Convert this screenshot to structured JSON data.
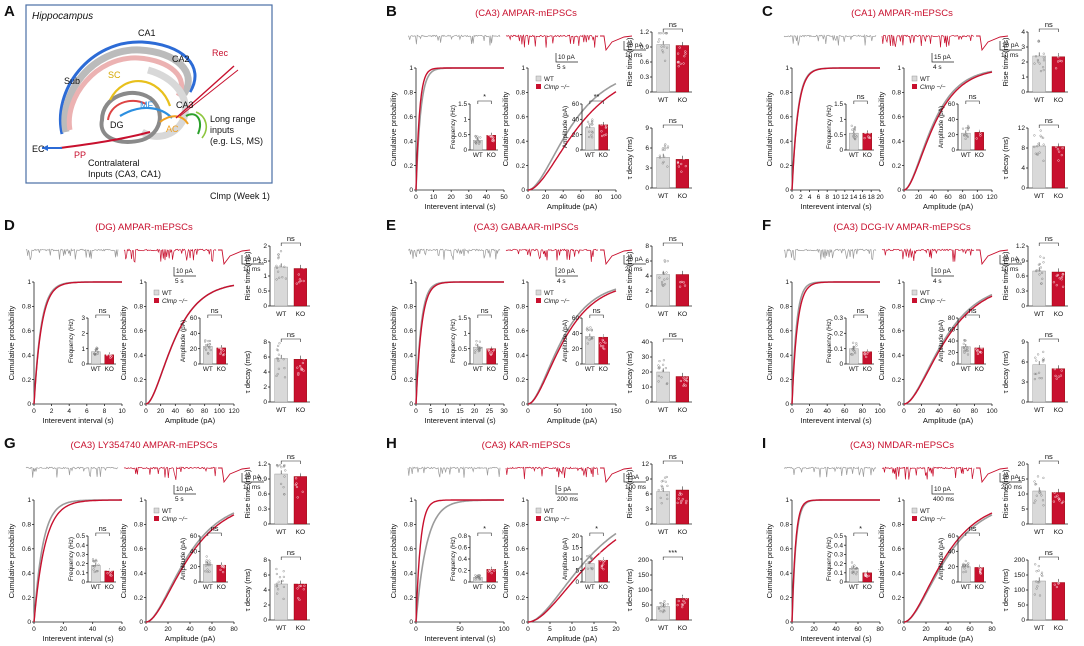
{
  "panelA": {
    "label": "A",
    "title": "Hippocampus",
    "note": "Clmp (Week 1)",
    "labels": {
      "ca1": "CA1",
      "ca2": "CA2",
      "ca3": "CA3",
      "sub": "Sub",
      "sc": "SC",
      "mf": "MF",
      "ac": "AC",
      "dg": "DG",
      "ec": "EC",
      "pp": "PP",
      "rec": "Rec",
      "longRange1": "Long range",
      "longRange2": "inputs",
      "longRange3": "(e.g. LS, MS)",
      "contra1": "Contralateral",
      "contra2": "Inputs (CA3, CA1)"
    }
  },
  "legend": {
    "wt": "WT",
    "ko": "Clmp −/−"
  },
  "groups": [
    "WT",
    "KO"
  ],
  "labels": {
    "cum": "Cumulative probability",
    "iei": "Interevent interval (s)",
    "amp": "Amplitude (pA)",
    "freqInset": "Frequency (Hz)",
    "ampInset": "Amplitude (pA)",
    "rise": "Rise time (ms)",
    "decay": "τ decay (ms)"
  },
  "colors": {
    "wt": "#9b9b9b",
    "ko": "#c8102e",
    "wtBar": "#d9d9d9",
    "koBar": "#c8102e"
  },
  "chart_data": [
    {
      "panel": "B",
      "title": "(CA3) AMPAR-mEPSCs",
      "type": "line",
      "scalebars": [
        "10 pA",
        "5 s",
        "10 pA",
        "10 ms"
      ],
      "cum_iei": {
        "xticks": [
          0,
          10,
          20,
          30,
          40,
          50
        ],
        "yticks": [
          0,
          0.2,
          0.4,
          0.6,
          0.8,
          1.0
        ],
        "wt_scale": 2.6,
        "ko_scale": 2.0,
        "shape": "exp"
      },
      "cum_amp": {
        "xticks": [
          0,
          20,
          40,
          60,
          80,
          100
        ],
        "yticks": [
          0,
          0.2,
          0.4,
          0.6,
          0.8,
          1.0
        ],
        "wt_scale": 28,
        "ko_scale": 33,
        "shape": "gamma"
      },
      "freq": {
        "WT": 0.32,
        "KO": 0.48,
        "yticks": [
          0,
          0.5,
          1.0,
          1.5
        ],
        "sig": "*"
      },
      "ampBar": {
        "WT": 29,
        "KO": 33,
        "yticks": [
          0,
          20,
          40,
          60
        ],
        "sig": "**"
      },
      "rise": {
        "WT": 0.95,
        "KO": 0.93,
        "yticks": [
          0,
          0.3,
          0.6,
          0.9,
          1.2
        ],
        "sig": "ns"
      },
      "decay": {
        "WT": 4.6,
        "KO": 4.3,
        "yticks": [
          0,
          3,
          6,
          9
        ],
        "sig": "ns"
      }
    },
    {
      "panel": "C",
      "title": "(CA1) AMPAR-mEPSCs",
      "type": "line",
      "scalebars": [
        "15 pA",
        "4 s",
        "10 pA",
        "10 ms"
      ],
      "cum_iei": {
        "xticks": [
          0,
          2,
          4,
          6,
          8,
          10,
          12,
          14,
          16,
          18,
          20
        ],
        "yticks": [
          0,
          0.2,
          0.4,
          0.6,
          0.8,
          1.0
        ],
        "wt_scale": 1.3,
        "ko_scale": 1.35,
        "shape": "exp"
      },
      "cum_amp": {
        "xticks": [
          0,
          20,
          40,
          60,
          80,
          100,
          120
        ],
        "yticks": [
          0,
          0.2,
          0.4,
          0.6,
          0.8,
          1.0
        ],
        "wt_scale": 22,
        "ko_scale": 23,
        "shape": "gamma"
      },
      "freq": {
        "WT": 0.55,
        "KO": 0.55,
        "yticks": [
          0,
          0.5,
          1.0,
          1.5
        ],
        "sig": "ns"
      },
      "ampBar": {
        "WT": 22,
        "KO": 23,
        "yticks": [
          0,
          20,
          40,
          60
        ],
        "sig": "ns"
      },
      "rise": {
        "WT": 2.4,
        "KO": 2.35,
        "yticks": [
          0,
          1,
          2,
          3,
          4
        ],
        "sig": "ns"
      },
      "decay": {
        "WT": 8.4,
        "KO": 8.3,
        "yticks": [
          0,
          4,
          8,
          12
        ],
        "sig": "ns"
      }
    },
    {
      "panel": "D",
      "title": "(DG) AMPAR-mEPSCs",
      "type": "line",
      "scalebars": [
        "10 pA",
        "5 s",
        "10 pA",
        "10 ms"
      ],
      "cum_iei": {
        "xticks": [
          0,
          2,
          4,
          6,
          8,
          10
        ],
        "yticks": [
          0,
          0.2,
          0.4,
          0.6,
          0.8,
          1.0
        ],
        "wt_scale": 0.8,
        "ko_scale": 0.85,
        "shape": "exp"
      },
      "cum_amp": {
        "xticks": [
          0,
          20,
          40,
          60,
          80,
          100,
          120
        ],
        "yticks": [
          0,
          0.2,
          0.4,
          0.6,
          0.8,
          1.0
        ],
        "wt_scale": 22,
        "ko_scale": 22,
        "shape": "gamma"
      },
      "freq": {
        "WT": 0.8,
        "KO": 0.6,
        "yticks": [
          0,
          1,
          2,
          3
        ],
        "sig": "ns"
      },
      "ampBar": {
        "WT": 23,
        "KO": 21,
        "yticks": [
          0,
          20,
          40,
          60
        ],
        "sig": "ns"
      },
      "rise": {
        "WT": 1.3,
        "KO": 1.25,
        "yticks": [
          0,
          0.5,
          1.0,
          1.5,
          2.0
        ],
        "sig": "ns"
      },
      "decay": {
        "WT": 5.8,
        "KO": 5.7,
        "yticks": [
          0,
          2,
          4,
          6,
          8
        ],
        "sig": "ns"
      }
    },
    {
      "panel": "E",
      "title": "(CA3) GABAAR-mIPSCs",
      "type": "line",
      "scalebars": [
        "20 pA",
        "4 s",
        "20 pA",
        "20 ms"
      ],
      "cum_iei": {
        "xticks": [
          0,
          5,
          10,
          15,
          20,
          25,
          30
        ],
        "yticks": [
          0,
          0.2,
          0.4,
          0.6,
          0.8,
          1.0
        ],
        "wt_scale": 1.7,
        "ko_scale": 1.9,
        "shape": "exp"
      },
      "cum_amp": {
        "xticks": [
          0,
          50,
          100,
          150
        ],
        "yticks": [
          0,
          0.2,
          0.4,
          0.6,
          0.8,
          1.0
        ],
        "wt_scale": 33,
        "ko_scale": 35,
        "shape": "gamma"
      },
      "freq": {
        "WT": 0.55,
        "KO": 0.5,
        "yticks": [
          0,
          0.5,
          1.0,
          1.5
        ],
        "sig": "ns"
      },
      "ampBar": {
        "WT": 36,
        "KO": 35,
        "yticks": [
          0,
          20,
          40,
          60
        ],
        "sig": "ns"
      },
      "rise": {
        "WT": 4.2,
        "KO": 4.2,
        "yticks": [
          0,
          2,
          4,
          6,
          8
        ],
        "sig": "ns"
      },
      "decay": {
        "WT": 20,
        "KO": 17,
        "yticks": [
          0,
          10,
          20,
          30,
          40
        ],
        "sig": "ns"
      }
    },
    {
      "panel": "F",
      "title": "(CA3) DCG-IV AMPAR-mEPSCs",
      "type": "line",
      "scalebars": [
        "10 pA",
        "4 s",
        "10 pA",
        "10 ms"
      ],
      "cum_iei": {
        "xticks": [
          0,
          20,
          40,
          60,
          80,
          100
        ],
        "yticks": [
          0,
          0.2,
          0.4,
          0.6,
          0.8,
          1.0
        ],
        "wt_scale": 5,
        "ko_scale": 6,
        "shape": "exp"
      },
      "cum_amp": {
        "xticks": [
          0,
          20,
          40,
          60,
          80,
          100
        ],
        "yticks": [
          0,
          0.2,
          0.4,
          0.6,
          0.8,
          1.0
        ],
        "wt_scale": 26,
        "ko_scale": 27,
        "shape": "gamma"
      },
      "freq": {
        "WT": 0.1,
        "KO": 0.08,
        "yticks": [
          0,
          0.1,
          0.2,
          0.3
        ],
        "sig": "ns"
      },
      "ampBar": {
        "WT": 30,
        "KO": 28,
        "yticks": [
          0,
          20,
          40,
          60,
          80
        ],
        "sig": "ns"
      },
      "rise": {
        "WT": 0.7,
        "KO": 0.68,
        "yticks": [
          0,
          0.3,
          0.6,
          0.9,
          1.2
        ],
        "sig": "ns"
      },
      "decay": {
        "WT": 5.6,
        "KO": 5.0,
        "yticks": [
          0,
          3,
          6,
          9
        ],
        "sig": "ns"
      }
    },
    {
      "panel": "G",
      "title": "(CA3) LY354740 AMPAR-mEPSCs",
      "type": "line",
      "scalebars": [
        "10 pA",
        "5 s",
        "10 pA",
        "10 ms"
      ],
      "cum_iei": {
        "xticks": [
          0,
          20,
          40,
          60
        ],
        "yticks": [
          0,
          0.2,
          0.4,
          0.6,
          0.8,
          1.0
        ],
        "wt_scale": 6,
        "ko_scale": 7.5,
        "shape": "exp"
      },
      "cum_amp": {
        "xticks": [
          0,
          20,
          40,
          60,
          80
        ],
        "yticks": [
          0,
          0.2,
          0.4,
          0.6,
          0.8,
          1.0
        ],
        "wt_scale": 21,
        "ko_scale": 22,
        "shape": "gamma"
      },
      "freq": {
        "WT": 0.18,
        "KO": 0.12,
        "yticks": [
          0,
          0.1,
          0.2,
          0.3,
          0.4,
          0.5
        ],
        "sig": "ns"
      },
      "ampBar": {
        "WT": 23,
        "KO": 22,
        "yticks": [
          0,
          20,
          40,
          60
        ],
        "sig": "ns"
      },
      "rise": {
        "WT": 1.0,
        "KO": 0.95,
        "yticks": [
          0,
          0.3,
          0.6,
          0.9,
          1.2
        ],
        "sig": "ns"
      },
      "decay": {
        "WT": 4.8,
        "KO": 4.8,
        "yticks": [
          0,
          2,
          4,
          6,
          8
        ],
        "sig": "ns"
      }
    },
    {
      "panel": "H",
      "title": "(CA3) KAR-mEPSCs",
      "type": "line",
      "scalebars": [
        "5 pA",
        "200 ms",
        "5 pA",
        "100 ms"
      ],
      "cum_iei": {
        "xticks": [
          0,
          50,
          100
        ],
        "yticks": [
          0,
          0.2,
          0.4,
          0.6,
          0.8,
          1.0
        ],
        "wt_scale": 12,
        "ko_scale": 5,
        "shape": "exp"
      },
      "cum_amp": {
        "xticks": [
          0,
          5,
          10,
          15,
          20
        ],
        "yticks": [
          0,
          0.2,
          0.4,
          0.6,
          0.8,
          1.0
        ],
        "wt_scale": 7.8,
        "ko_scale": 8.6,
        "shape": "gamma"
      },
      "freq": {
        "WT": 0.08,
        "KO": 0.22,
        "yticks": [
          0,
          0.2,
          0.4,
          0.6,
          0.8
        ],
        "sig": "*"
      },
      "ampBar": {
        "WT": 8,
        "KO": 9.5,
        "yticks": [
          0,
          5,
          10,
          15,
          20
        ],
        "sig": "*"
      },
      "rise": {
        "WT": 6.5,
        "KO": 6.8,
        "yticks": [
          0,
          3,
          6,
          9,
          12
        ],
        "sig": "ns"
      },
      "decay": {
        "WT": 45,
        "KO": 72,
        "yticks": [
          0,
          50,
          100,
          150,
          200
        ],
        "sig": "***"
      }
    },
    {
      "panel": "I",
      "title": "(CA3) NMDAR-mEPSCs",
      "type": "line",
      "scalebars": [
        "10 pA",
        "400 ms",
        "10 pA",
        "200 ms"
      ],
      "cum_iei": {
        "xticks": [
          0,
          20,
          40,
          60,
          80
        ],
        "yticks": [
          0,
          0.2,
          0.4,
          0.6,
          0.8,
          1.0
        ],
        "wt_scale": 3.5,
        "ko_scale": 3.2,
        "shape": "exp"
      },
      "cum_amp": {
        "xticks": [
          0,
          20,
          40,
          60,
          80
        ],
        "yticks": [
          0,
          0.2,
          0.4,
          0.6,
          0.8,
          1.0
        ],
        "wt_scale": 22,
        "ko_scale": 21,
        "shape": "gamma"
      },
      "freq": {
        "WT": 0.15,
        "KO": 0.1,
        "yticks": [
          0,
          0.1,
          0.2,
          0.3,
          0.4,
          0.5
        ],
        "sig": "*"
      },
      "ampBar": {
        "WT": 20,
        "KO": 19,
        "yticks": [
          0,
          20,
          40,
          60
        ],
        "sig": "ns"
      },
      "rise": {
        "WT": 11,
        "KO": 10.5,
        "yticks": [
          0,
          5,
          10,
          15,
          20
        ],
        "sig": "ns"
      },
      "decay": {
        "WT": 130,
        "KO": 125,
        "yticks": [
          0,
          50,
          100,
          150,
          200
        ],
        "sig": "ns"
      }
    }
  ]
}
